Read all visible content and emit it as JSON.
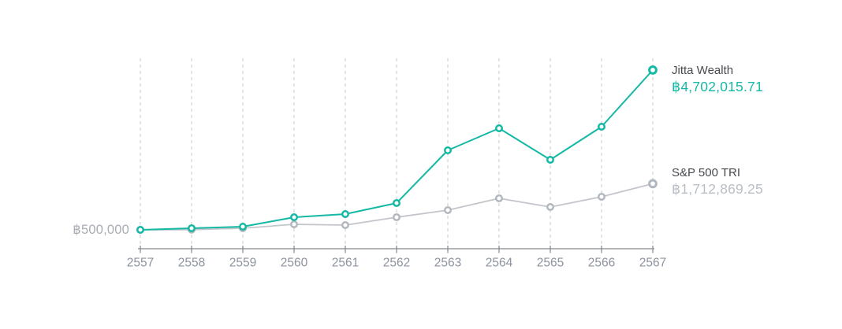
{
  "colors": {
    "jitta_line": "#14b8a5",
    "jitta_value_text": "#14b8a5",
    "sp_line": "#c2c6cb",
    "sp_marker": "#b2b8bf",
    "sp_value_text": "#b9bfc6",
    "series_name_text": "#46494e",
    "axis": "#85898e",
    "grid": "#e3e4e6",
    "tick_label": "#8d94a0",
    "baseline_label_text": "#a7adb4",
    "marker_fill": "#ffffff"
  },
  "chart_data": {
    "type": "line",
    "categories": [
      "2557",
      "2558",
      "2559",
      "2560",
      "2561",
      "2562",
      "2563",
      "2564",
      "2565",
      "2566",
      "2567"
    ],
    "series": [
      {
        "name": "Jitta Wealth",
        "final_label": "฿4,702,015.71",
        "final_value": 4702015.71,
        "color": "#14b8a5",
        "values": [
          500000,
          541000,
          583000,
          831000,
          914000,
          1204000,
          2591000,
          3170000,
          2342000,
          3212000,
          4702015.71
        ]
      },
      {
        "name": "S&P 500 TRI",
        "final_label": "฿1,712,869.25",
        "final_value": 1712869.25,
        "color": "#c2c6cb",
        "marker_color": "#b2b8bf",
        "values": [
          500000,
          505000,
          541000,
          645000,
          625000,
          831000,
          1018000,
          1328000,
          1100000,
          1369000,
          1712869.25
        ]
      }
    ],
    "y_baseline": {
      "text": "฿500,000",
      "value": 500000
    },
    "xlabel": "",
    "ylabel": "",
    "title": "",
    "grid": "vertical-dashed",
    "legend_position": "right-of-last-point",
    "x_axis_shown": true,
    "y_axis_shown": false
  }
}
